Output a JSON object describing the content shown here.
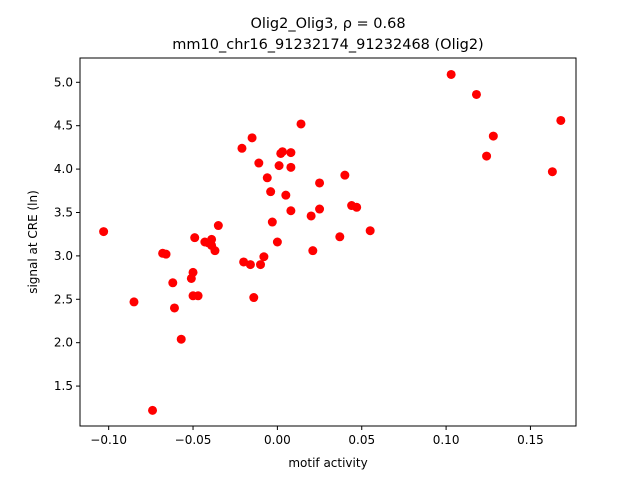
{
  "chart_data": {
    "type": "scatter",
    "title_line1": "Olig2_Olig3, ρ = 0.68",
    "title_line2": "mm10_chr16_91232174_91232468 (Olig2)",
    "xlabel": "motif activity",
    "ylabel": "signal at CRE (ln)",
    "xlim": [
      -0.117,
      0.177
    ],
    "ylim": [
      1.04,
      5.28
    ],
    "xticks": [
      -0.1,
      -0.05,
      0.0,
      0.05,
      0.1,
      0.15
    ],
    "xtick_labels": [
      "−0.10",
      "−0.05",
      "0.00",
      "0.05",
      "0.10",
      "0.15"
    ],
    "yticks": [
      1.5,
      2.0,
      2.5,
      3.0,
      3.5,
      4.0,
      4.5,
      5.0
    ],
    "ytick_labels": [
      "1.5",
      "2.0",
      "2.5",
      "3.0",
      "3.5",
      "4.0",
      "4.5",
      "5.0"
    ],
    "grid": false,
    "marker_color": "#ff0000",
    "points": [
      {
        "x": -0.103,
        "y": 3.28
      },
      {
        "x": -0.085,
        "y": 2.47
      },
      {
        "x": -0.074,
        "y": 1.22
      },
      {
        "x": -0.068,
        "y": 3.03
      },
      {
        "x": -0.066,
        "y": 3.02
      },
      {
        "x": -0.062,
        "y": 2.69
      },
      {
        "x": -0.061,
        "y": 2.4
      },
      {
        "x": -0.057,
        "y": 2.04
      },
      {
        "x": -0.051,
        "y": 2.74
      },
      {
        "x": -0.05,
        "y": 2.81
      },
      {
        "x": -0.05,
        "y": 2.54
      },
      {
        "x": -0.049,
        "y": 3.21
      },
      {
        "x": -0.047,
        "y": 2.54
      },
      {
        "x": -0.043,
        "y": 3.16
      },
      {
        "x": -0.041,
        "y": 3.15
      },
      {
        "x": -0.039,
        "y": 3.19
      },
      {
        "x": -0.039,
        "y": 3.12
      },
      {
        "x": -0.037,
        "y": 3.06
      },
      {
        "x": -0.035,
        "y": 3.35
      },
      {
        "x": -0.021,
        "y": 4.24
      },
      {
        "x": -0.02,
        "y": 2.93
      },
      {
        "x": -0.016,
        "y": 2.9
      },
      {
        "x": -0.015,
        "y": 4.36
      },
      {
        "x": -0.014,
        "y": 2.52
      },
      {
        "x": -0.011,
        "y": 4.07
      },
      {
        "x": -0.01,
        "y": 2.9
      },
      {
        "x": -0.008,
        "y": 2.99
      },
      {
        "x": -0.006,
        "y": 3.9
      },
      {
        "x": -0.004,
        "y": 3.74
      },
      {
        "x": -0.003,
        "y": 3.39
      },
      {
        "x": 0.0,
        "y": 3.16
      },
      {
        "x": 0.001,
        "y": 4.04
      },
      {
        "x": 0.002,
        "y": 4.18
      },
      {
        "x": 0.003,
        "y": 4.2
      },
      {
        "x": 0.005,
        "y": 3.7
      },
      {
        "x": 0.008,
        "y": 4.19
      },
      {
        "x": 0.008,
        "y": 4.02
      },
      {
        "x": 0.008,
        "y": 3.52
      },
      {
        "x": 0.014,
        "y": 4.52
      },
      {
        "x": 0.02,
        "y": 3.46
      },
      {
        "x": 0.021,
        "y": 3.06
      },
      {
        "x": 0.025,
        "y": 3.84
      },
      {
        "x": 0.025,
        "y": 3.54
      },
      {
        "x": 0.037,
        "y": 3.22
      },
      {
        "x": 0.04,
        "y": 3.93
      },
      {
        "x": 0.044,
        "y": 3.58
      },
      {
        "x": 0.047,
        "y": 3.56
      },
      {
        "x": 0.055,
        "y": 3.29
      },
      {
        "x": 0.103,
        "y": 5.09
      },
      {
        "x": 0.118,
        "y": 4.86
      },
      {
        "x": 0.124,
        "y": 4.15
      },
      {
        "x": 0.128,
        "y": 4.38
      },
      {
        "x": 0.163,
        "y": 3.97
      },
      {
        "x": 0.168,
        "y": 4.56
      }
    ]
  }
}
